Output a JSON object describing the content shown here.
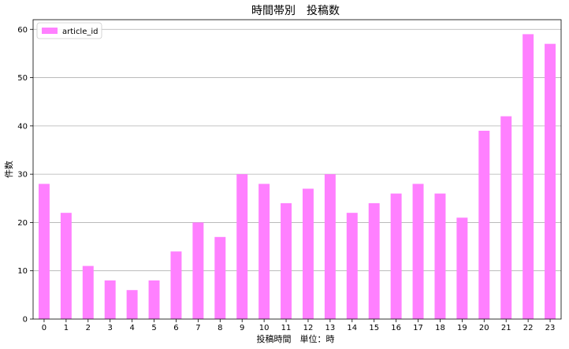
{
  "chart_data": {
    "type": "bar",
    "title": "時間帯別　投稿数",
    "xlabel": "投稿時間　単位：時",
    "ylabel": "件数",
    "categories": [
      "0",
      "1",
      "2",
      "3",
      "4",
      "5",
      "6",
      "7",
      "8",
      "9",
      "10",
      "11",
      "12",
      "13",
      "14",
      "15",
      "16",
      "17",
      "18",
      "19",
      "20",
      "21",
      "22",
      "23"
    ],
    "series": [
      {
        "name": "article_id",
        "values": [
          28,
          22,
          11,
          8,
          6,
          8,
          14,
          20,
          17,
          30,
          28,
          24,
          27,
          30,
          22,
          24,
          26,
          28,
          26,
          21,
          39,
          42,
          59,
          57
        ],
        "color": "#ff80ff"
      }
    ],
    "ylim": [
      0,
      62
    ],
    "yticks": [
      0,
      10,
      20,
      30,
      40,
      50,
      60
    ],
    "grid": "horizontal",
    "legend_position": "top-left"
  }
}
